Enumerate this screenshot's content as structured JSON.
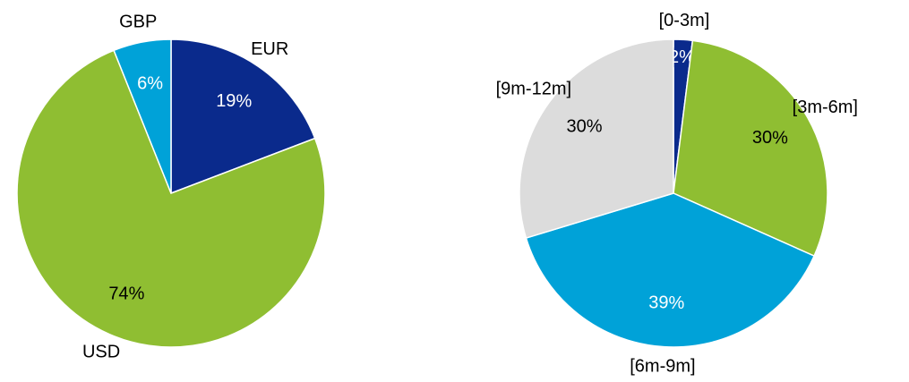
{
  "chart_data": [
    {
      "type": "pie",
      "categories": [
        "EUR",
        "USD",
        "GBP"
      ],
      "values": [
        19,
        74,
        6
      ],
      "colors": [
        "#0a2a8c",
        "#8fbe32",
        "#00a2d8"
      ]
    },
    {
      "type": "pie",
      "categories": [
        "[0-3m]",
        "[3m-6m]",
        "[6m-9m]",
        "[9m-12m]"
      ],
      "values": [
        2,
        30,
        39,
        30
      ],
      "colors": [
        "#0a2a8c",
        "#8fbe32",
        "#00a2d8",
        "#dcdcdc"
      ]
    }
  ]
}
